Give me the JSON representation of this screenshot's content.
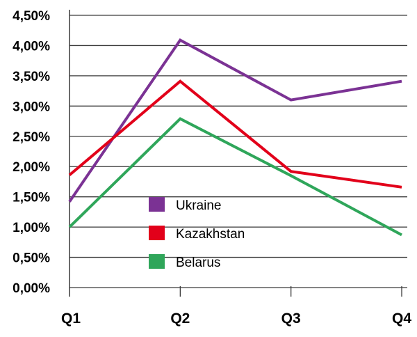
{
  "chart_data": {
    "type": "line",
    "categories": [
      "Q1",
      "Q2",
      "Q3",
      "Q4"
    ],
    "y_ticks": [
      "0,00%",
      "0,50%",
      "1,00%",
      "1,50%",
      "2,00%",
      "2,50%",
      "3,00%",
      "3,50%",
      "4,00%",
      "4,50%"
    ],
    "ylim": [
      0,
      4.5
    ],
    "grid": true,
    "legend_position": "center",
    "series": [
      {
        "name": "Ukraine",
        "color": "#7b3294",
        "values": [
          1.42,
          4.09,
          3.1,
          3.41
        ]
      },
      {
        "name": "Kazakhstan",
        "color": "#e2001a",
        "values": [
          1.86,
          3.41,
          1.92,
          1.66
        ]
      },
      {
        "name": "Belarus",
        "color": "#2fa65a",
        "values": [
          1.0,
          2.79,
          1.85,
          0.87
        ]
      }
    ]
  }
}
